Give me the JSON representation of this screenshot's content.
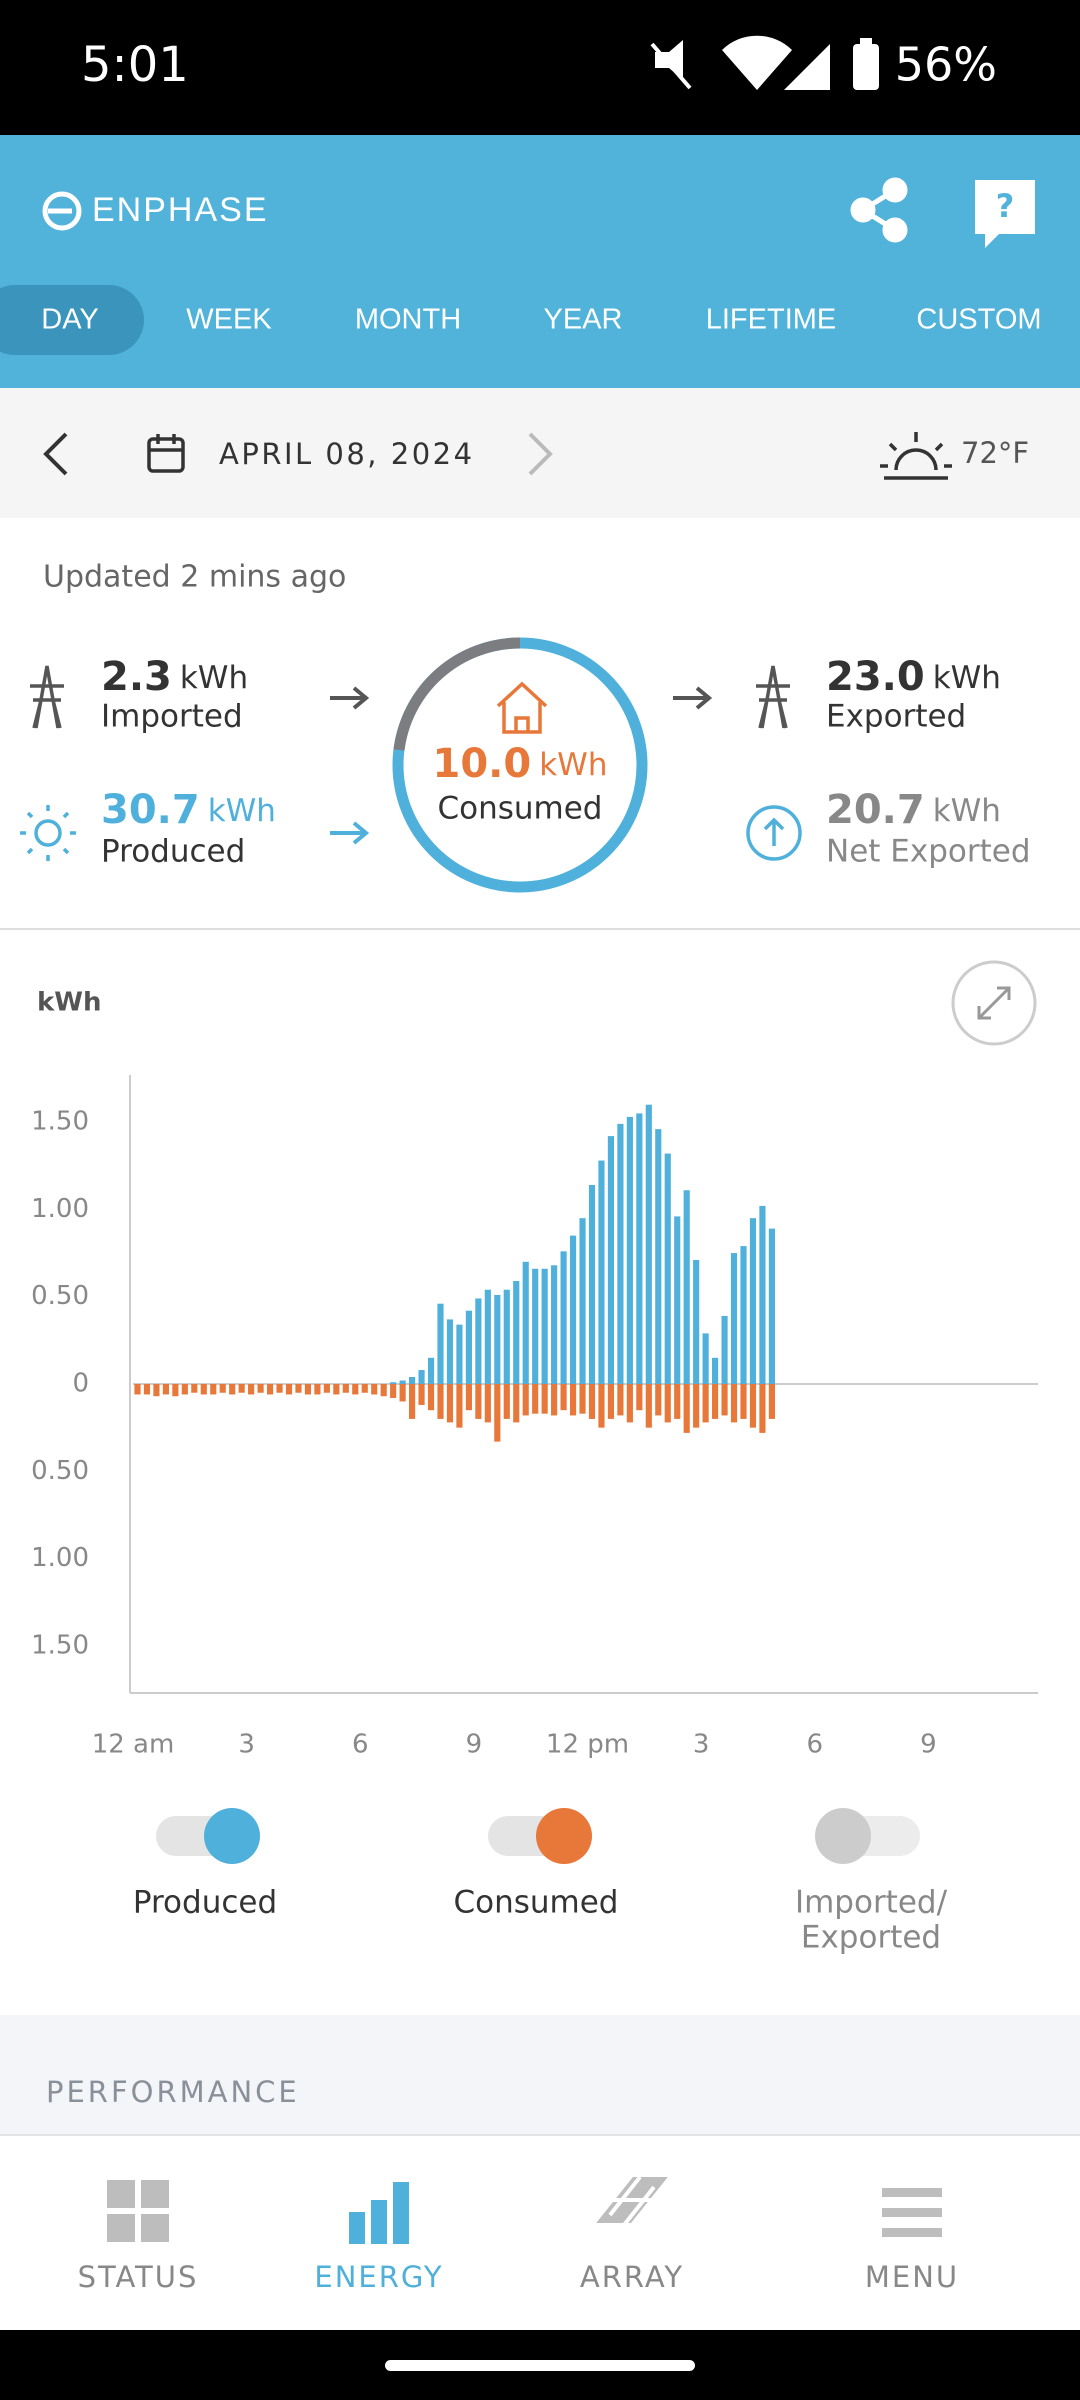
{
  "status_bar": {
    "time": "5:01",
    "battery": "56%"
  },
  "header": {
    "brand": "ENPHASE",
    "tabs": [
      "DAY",
      "WEEK",
      "MONTH",
      "YEAR",
      "LIFETIME",
      "CUSTOM"
    ],
    "active_tab": 0
  },
  "date_bar": {
    "date": "APRIL 08, 2024",
    "temperature": "72°F"
  },
  "summary": {
    "updated": "Updated 2 mins ago",
    "imported": {
      "value": "2.3",
      "unit": "kWh",
      "label": "Imported"
    },
    "produced": {
      "value": "30.7",
      "unit": "kWh",
      "label": "Produced"
    },
    "consumed": {
      "value": "10.0",
      "unit": "kWh",
      "label": "Consumed"
    },
    "exported": {
      "value": "23.0",
      "unit": "kWh",
      "label": "Exported"
    },
    "net_exported": {
      "value": "20.7",
      "unit": "kWh",
      "label": "Net Exported"
    }
  },
  "chart_data": {
    "type": "bar",
    "y_label": "kWh",
    "x": [
      0,
      0.25,
      0.5,
      0.75,
      1,
      1.25,
      1.5,
      1.75,
      2,
      2.25,
      2.5,
      2.75,
      3,
      3.25,
      3.5,
      3.75,
      4,
      4.25,
      4.5,
      4.75,
      5,
      5.25,
      5.5,
      5.75,
      6,
      6.25,
      6.5,
      6.75,
      7,
      7.25,
      7.5,
      7.75,
      8,
      8.25,
      8.5,
      8.75,
      9,
      9.25,
      9.5,
      9.75,
      10,
      10.25,
      10.5,
      10.75,
      11,
      11.25,
      11.5,
      11.75,
      12,
      12.25,
      12.5,
      12.75,
      13,
      13.25,
      13.5,
      13.75,
      14,
      14.25,
      14.5,
      14.75,
      15,
      15.25,
      15.5,
      15.75,
      16,
      16.25,
      16.5,
      16.75
    ],
    "series": [
      {
        "name": "Produced",
        "color": "#4fb0dc",
        "values": [
          0,
          0,
          0,
          0,
          0,
          0,
          0,
          0,
          0,
          0,
          0,
          0,
          0,
          0,
          0,
          0,
          0,
          0,
          0,
          0,
          0,
          0,
          0,
          0,
          0,
          0,
          0,
          0.01,
          0.02,
          0.04,
          0.08,
          0.15,
          0.46,
          0.37,
          0.34,
          0.42,
          0.49,
          0.54,
          0.51,
          0.54,
          0.59,
          0.7,
          0.66,
          0.66,
          0.68,
          0.76,
          0.85,
          0.95,
          1.14,
          1.28,
          1.42,
          1.49,
          1.53,
          1.55,
          1.6,
          1.46,
          1.32,
          0.96,
          1.11,
          0.71,
          0.29,
          0.15,
          0.39,
          0.75,
          0.79,
          0.95,
          1.02,
          0.89
        ]
      },
      {
        "name": "Consumed",
        "color": "#e8773a",
        "values": [
          -0.06,
          -0.06,
          -0.07,
          -0.06,
          -0.07,
          -0.06,
          -0.05,
          -0.06,
          -0.06,
          -0.05,
          -0.06,
          -0.05,
          -0.06,
          -0.05,
          -0.06,
          -0.05,
          -0.06,
          -0.05,
          -0.06,
          -0.06,
          -0.05,
          -0.06,
          -0.05,
          -0.06,
          -0.05,
          -0.06,
          -0.07,
          -0.08,
          -0.1,
          -0.2,
          -0.12,
          -0.15,
          -0.2,
          -0.22,
          -0.25,
          -0.15,
          -0.2,
          -0.22,
          -0.33,
          -0.2,
          -0.22,
          -0.18,
          -0.17,
          -0.17,
          -0.18,
          -0.15,
          -0.18,
          -0.17,
          -0.2,
          -0.25,
          -0.2,
          -0.18,
          -0.22,
          -0.15,
          -0.25,
          -0.18,
          -0.22,
          -0.2,
          -0.28,
          -0.25,
          -0.22,
          -0.2,
          -0.18,
          -0.22,
          -0.2,
          -0.25,
          -0.28,
          -0.2
        ]
      }
    ],
    "xlim": [
      0,
      24
    ],
    "xticks": [
      {
        "value": 0,
        "label": "12 am"
      },
      3,
      6,
      9,
      {
        "value": 12,
        "label": "12 pm"
      },
      {
        "value": 15,
        "label": "3"
      },
      {
        "value": 18,
        "label": "6"
      },
      {
        "value": 21,
        "label": "9"
      }
    ],
    "ylim": [
      -1.77,
      1.77
    ],
    "yticks": [
      {
        "value": -1.5,
        "label": "1.50"
      },
      {
        "value": -1,
        "label": "1.00"
      },
      {
        "value": -0.5,
        "label": "0.50"
      },
      0,
      {
        "value": 0.5,
        "label": "0.50"
      },
      {
        "value": 1,
        "label": "1.00"
      },
      {
        "value": 1.5,
        "label": "1.50"
      }
    ],
    "grid": false
  },
  "chart_toggles": {
    "imported_exported": [
      "Imported/",
      "Exported"
    ]
  },
  "section": {
    "title": "PERFORMANCE"
  },
  "bottom_nav": {
    "items": [
      "STATUS",
      "ENERGY",
      "ARRAY",
      "MENU"
    ],
    "active": 1
  }
}
